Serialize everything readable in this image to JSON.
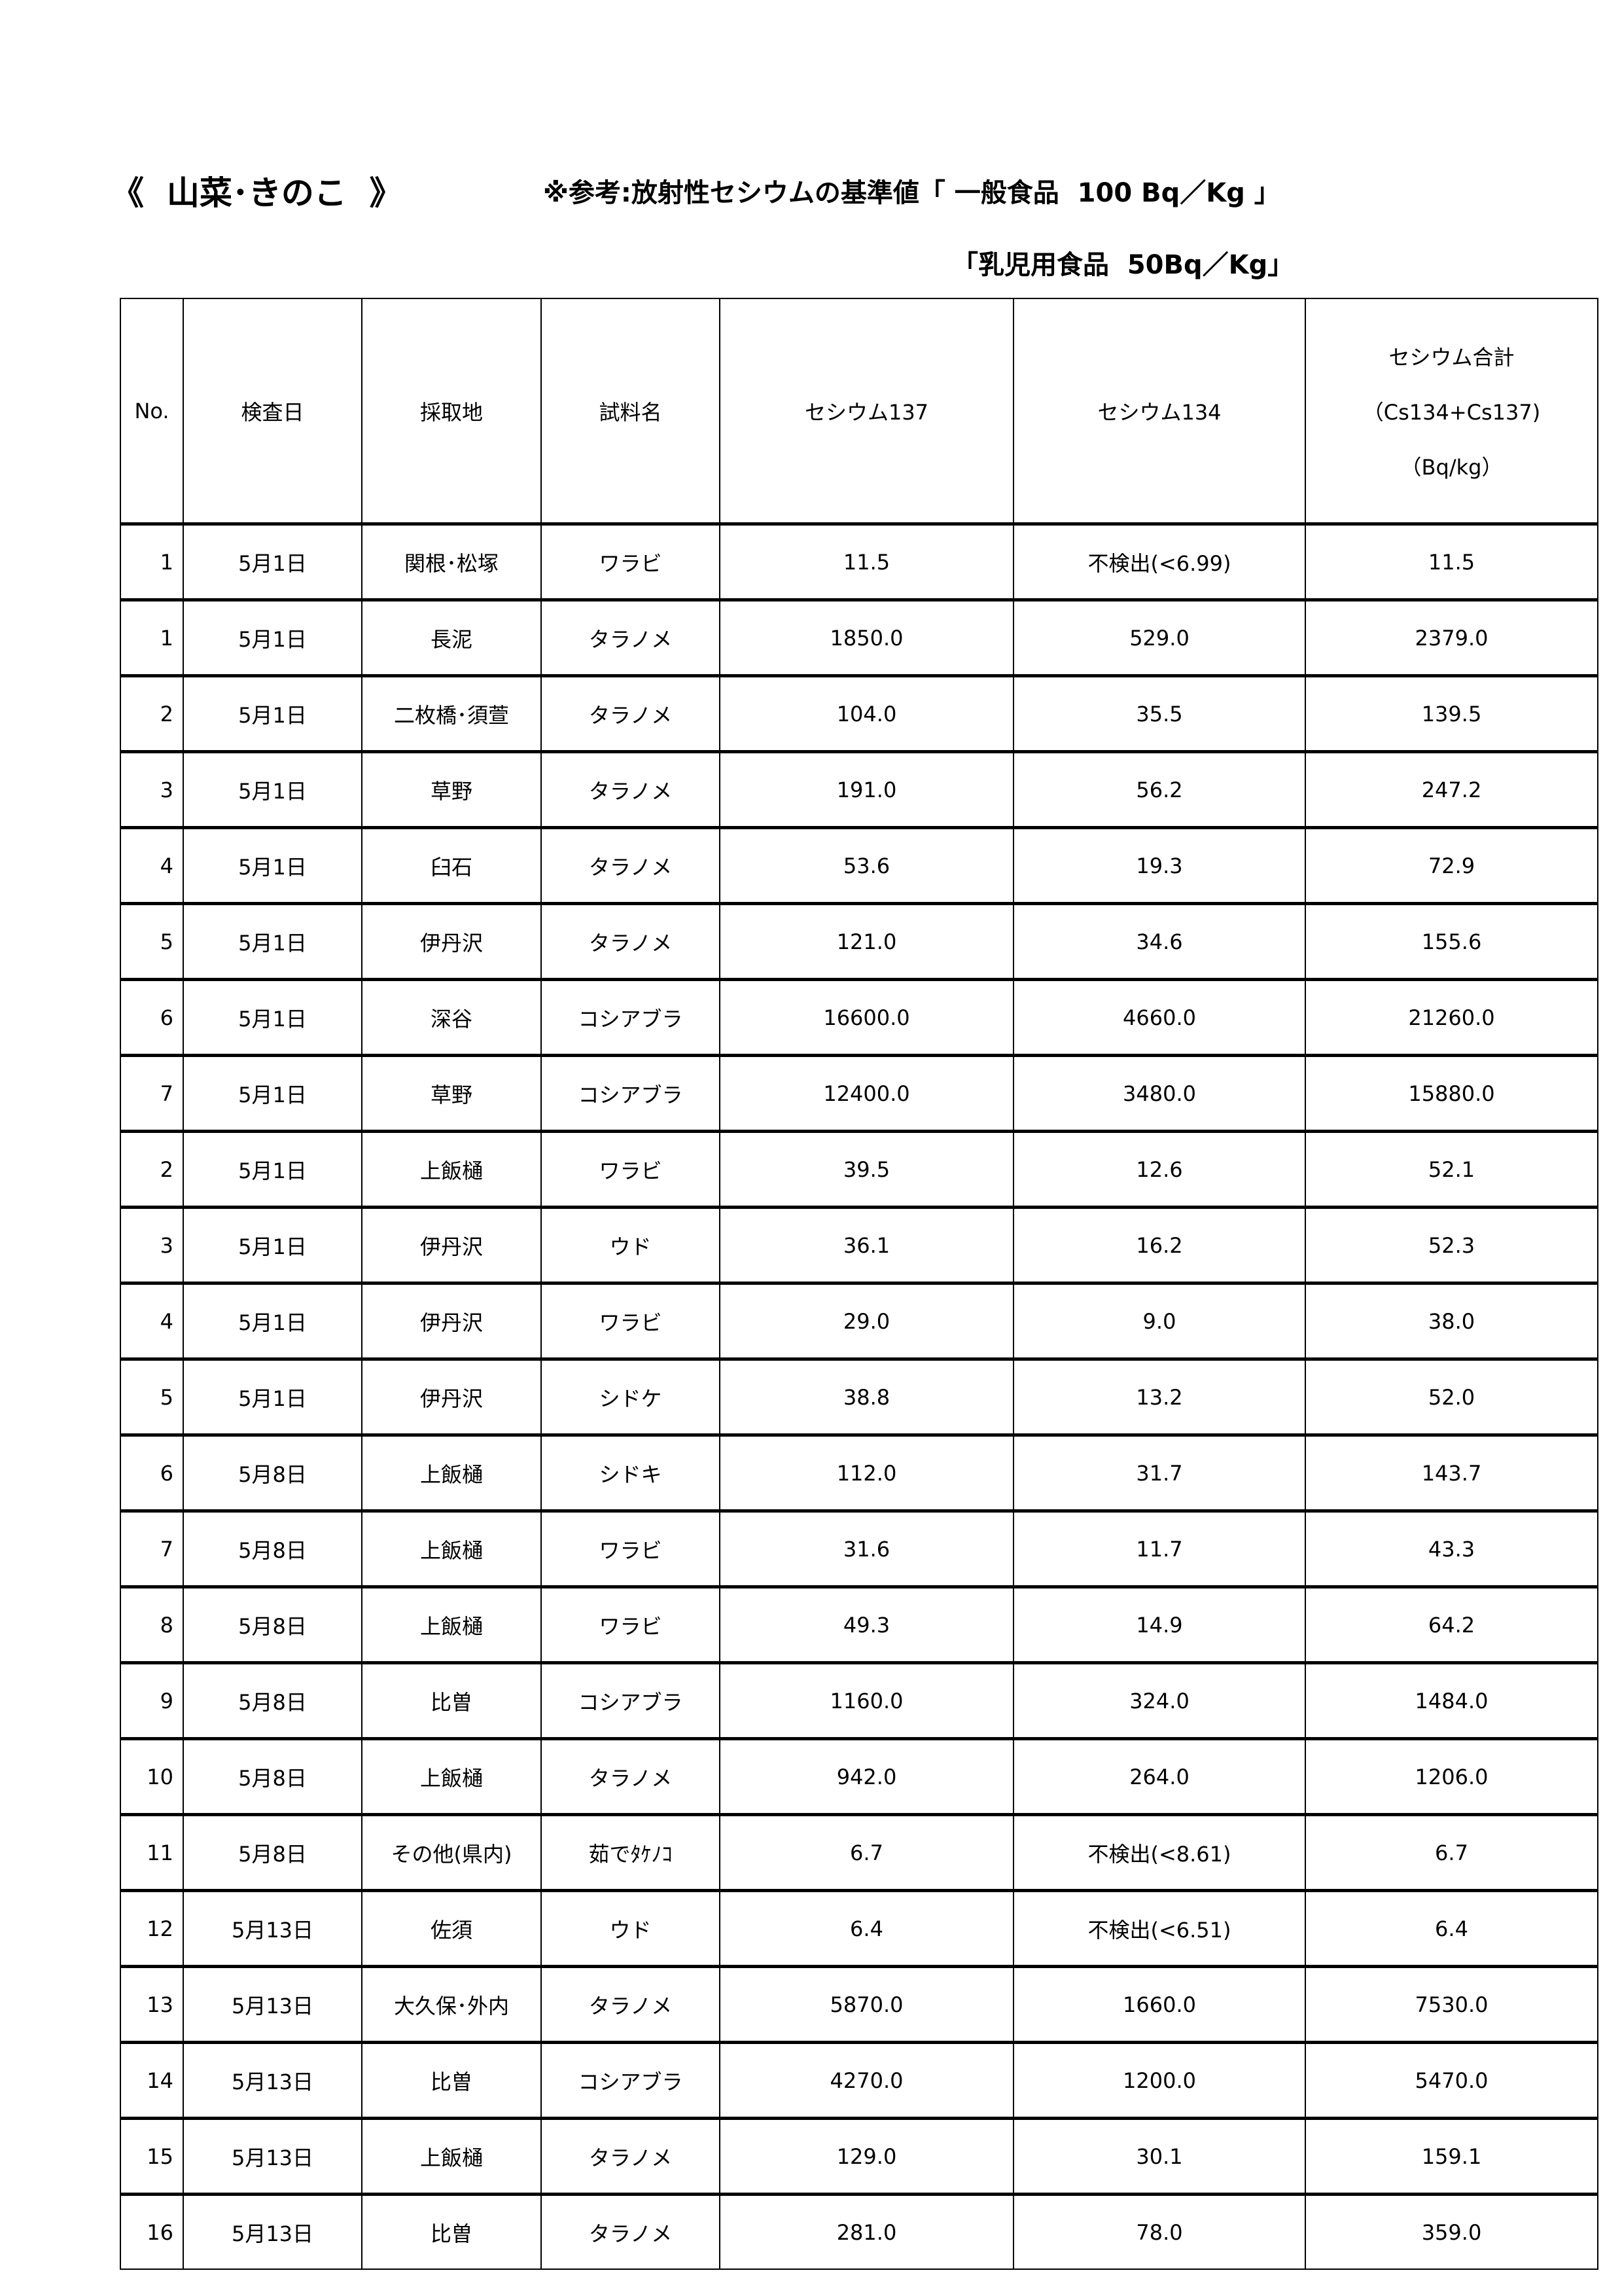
{
  "header": {
    "title": "《  山菜･きのこ  》",
    "reference_general": "※参考:放射性セシウムの基準値「 一般食品  100 Bq／Kg 」",
    "reference_infant": "「乳児用食品  50Bq／Kg」"
  },
  "table": {
    "columns": {
      "no": "No.",
      "date": "検査日",
      "location": "採取地",
      "sample": "試料名",
      "cs137": "セシウム137",
      "cs134": "セシウム134",
      "total_line1": "セシウム合計",
      "total_line2": "（Cs134+Cs137)",
      "total_line3": "（Bq/kg）"
    },
    "rows": [
      {
        "no": "1",
        "date": "5月1日",
        "location": "関根･松塚",
        "sample": "ワラビ",
        "cs137": "11.5",
        "cs134": "不検出(<6.99)",
        "total": "11.5"
      },
      {
        "no": "1",
        "date": "5月1日",
        "location": "長泥",
        "sample": "タラノメ",
        "cs137": "1850.0",
        "cs134": "529.0",
        "total": "2379.0"
      },
      {
        "no": "2",
        "date": "5月1日",
        "location": "二枚橋･須萱",
        "sample": "タラノメ",
        "cs137": "104.0",
        "cs134": "35.5",
        "total": "139.5"
      },
      {
        "no": "3",
        "date": "5月1日",
        "location": "草野",
        "sample": "タラノメ",
        "cs137": "191.0",
        "cs134": "56.2",
        "total": "247.2"
      },
      {
        "no": "4",
        "date": "5月1日",
        "location": "臼石",
        "sample": "タラノメ",
        "cs137": "53.6",
        "cs134": "19.3",
        "total": "72.9"
      },
      {
        "no": "5",
        "date": "5月1日",
        "location": "伊丹沢",
        "sample": "タラノメ",
        "cs137": "121.0",
        "cs134": "34.6",
        "total": "155.6"
      },
      {
        "no": "6",
        "date": "5月1日",
        "location": "深谷",
        "sample": "コシアブラ",
        "cs137": "16600.0",
        "cs134": "4660.0",
        "total": "21260.0"
      },
      {
        "no": "7",
        "date": "5月1日",
        "location": "草野",
        "sample": "コシアブラ",
        "cs137": "12400.0",
        "cs134": "3480.0",
        "total": "15880.0"
      },
      {
        "no": "2",
        "date": "5月1日",
        "location": "上飯樋",
        "sample": "ワラビ",
        "cs137": "39.5",
        "cs134": "12.6",
        "total": "52.1"
      },
      {
        "no": "3",
        "date": "5月1日",
        "location": "伊丹沢",
        "sample": "ウド",
        "cs137": "36.1",
        "cs134": "16.2",
        "total": "52.3"
      },
      {
        "no": "4",
        "date": "5月1日",
        "location": "伊丹沢",
        "sample": "ワラビ",
        "cs137": "29.0",
        "cs134": "9.0",
        "total": "38.0"
      },
      {
        "no": "5",
        "date": "5月1日",
        "location": "伊丹沢",
        "sample": "シドケ",
        "cs137": "38.8",
        "cs134": "13.2",
        "total": "52.0"
      },
      {
        "no": "6",
        "date": "5月8日",
        "location": "上飯樋",
        "sample": "シドキ",
        "cs137": "112.0",
        "cs134": "31.7",
        "total": "143.7"
      },
      {
        "no": "7",
        "date": "5月8日",
        "location": "上飯樋",
        "sample": "ワラビ",
        "cs137": "31.6",
        "cs134": "11.7",
        "total": "43.3"
      },
      {
        "no": "8",
        "date": "5月8日",
        "location": "上飯樋",
        "sample": "ワラビ",
        "cs137": "49.3",
        "cs134": "14.9",
        "total": "64.2"
      },
      {
        "no": "9",
        "date": "5月8日",
        "location": "比曽",
        "sample": "コシアブラ",
        "cs137": "1160.0",
        "cs134": "324.0",
        "total": "1484.0"
      },
      {
        "no": "10",
        "date": "5月8日",
        "location": "上飯樋",
        "sample": "タラノメ",
        "cs137": "942.0",
        "cs134": "264.0",
        "total": "1206.0"
      },
      {
        "no": "11",
        "date": "5月8日",
        "location": "その他(県内)",
        "sample": "茹でﾀｹﾉｺ",
        "cs137": "6.7",
        "cs134": "不検出(<8.61)",
        "total": "6.7"
      },
      {
        "no": "12",
        "date": "5月13日",
        "location": "佐須",
        "sample": "ウド",
        "cs137": "6.4",
        "cs134": "不検出(<6.51)",
        "total": "6.4"
      },
      {
        "no": "13",
        "date": "5月13日",
        "location": "大久保･外内",
        "sample": "タラノメ",
        "cs137": "5870.0",
        "cs134": "1660.0",
        "total": "7530.0"
      },
      {
        "no": "14",
        "date": "5月13日",
        "location": "比曽",
        "sample": "コシアブラ",
        "cs137": "4270.0",
        "cs134": "1200.0",
        "total": "5470.0"
      },
      {
        "no": "15",
        "date": "5月13日",
        "location": "上飯樋",
        "sample": "タラノメ",
        "cs137": "129.0",
        "cs134": "30.1",
        "total": "159.1"
      },
      {
        "no": "16",
        "date": "5月13日",
        "location": "比曽",
        "sample": "タラノメ",
        "cs137": "281.0",
        "cs134": "78.0",
        "total": "359.0"
      }
    ]
  }
}
